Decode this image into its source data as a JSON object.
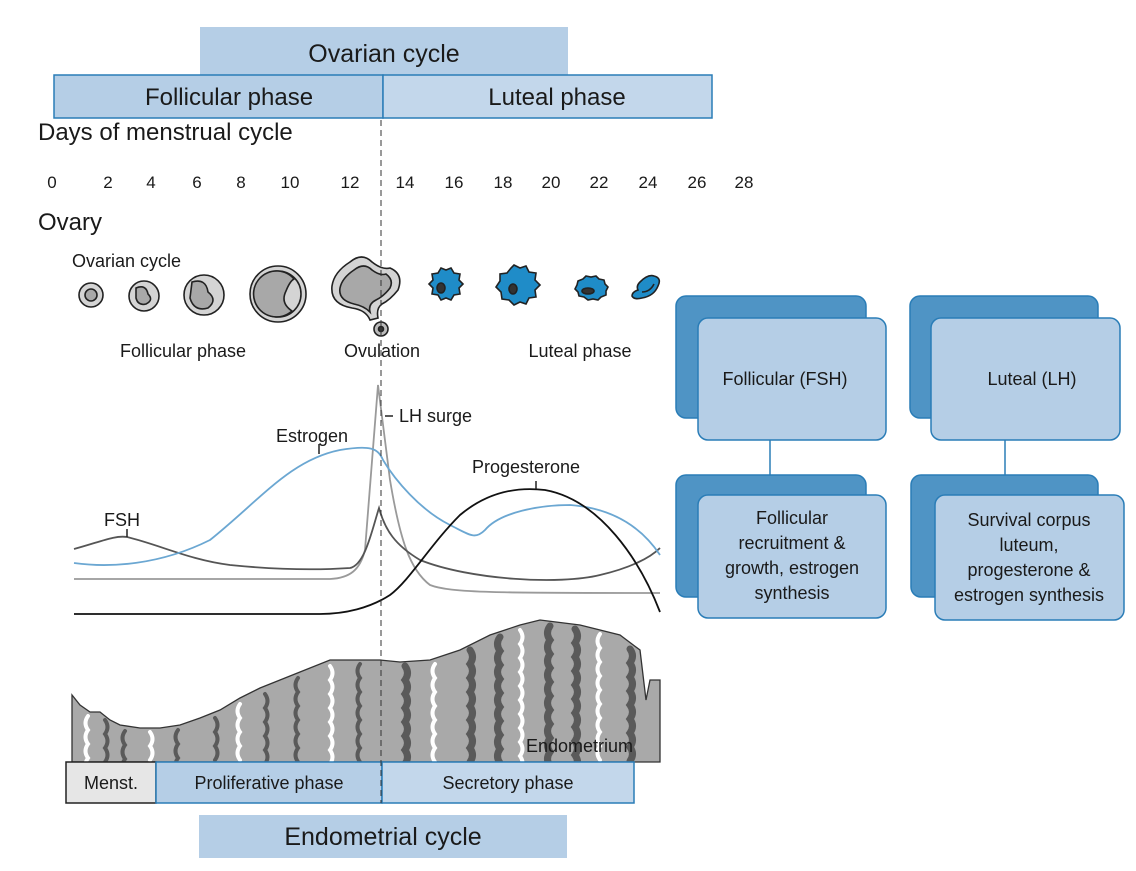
{
  "header": {
    "ovarian_cycle": "Ovarian cycle",
    "follicular_phase": "Follicular phase",
    "luteal_phase": "Luteal phase",
    "days_label": "Days of menstrual cycle",
    "days": [
      "0",
      "2",
      "4",
      "6",
      "8",
      "10",
      "12",
      "14",
      "16",
      "18",
      "20",
      "22",
      "24",
      "26",
      "28"
    ]
  },
  "ovary": {
    "title": "Ovary",
    "cycle_label": "Ovarian cycle",
    "follicular_label": "Follicular phase",
    "ovulation_label": "Ovulation",
    "luteal_label": "Luteal phase"
  },
  "hormones": {
    "fsh": "FSH",
    "estrogen": "Estrogen",
    "lh": "LH surge",
    "progesterone": "Progesterone"
  },
  "endometrium": {
    "label": "Endometrium",
    "menst": "Menst.",
    "proliferative": "Proliferative phase",
    "secretory": "Secretory phase",
    "cycle": "Endometrial cycle"
  },
  "boxes": {
    "follicular_title": "Follicular (FSH)",
    "luteal_title": "Luteal (LH)",
    "follicular_desc": [
      "Follicular",
      "recruitment &",
      "growth, estrogen",
      "synthesis"
    ],
    "luteal_desc": [
      "Survival corpus",
      "luteum,",
      "progesterone &",
      "estrogen synthesis"
    ]
  },
  "colors": {
    "light_blue": "#b5cee6",
    "dark_blue": "#4f94c5",
    "border_blue": "#2a7db7",
    "cell_blue": "#1f8cc8",
    "estrogen": "#6ba7d2"
  }
}
